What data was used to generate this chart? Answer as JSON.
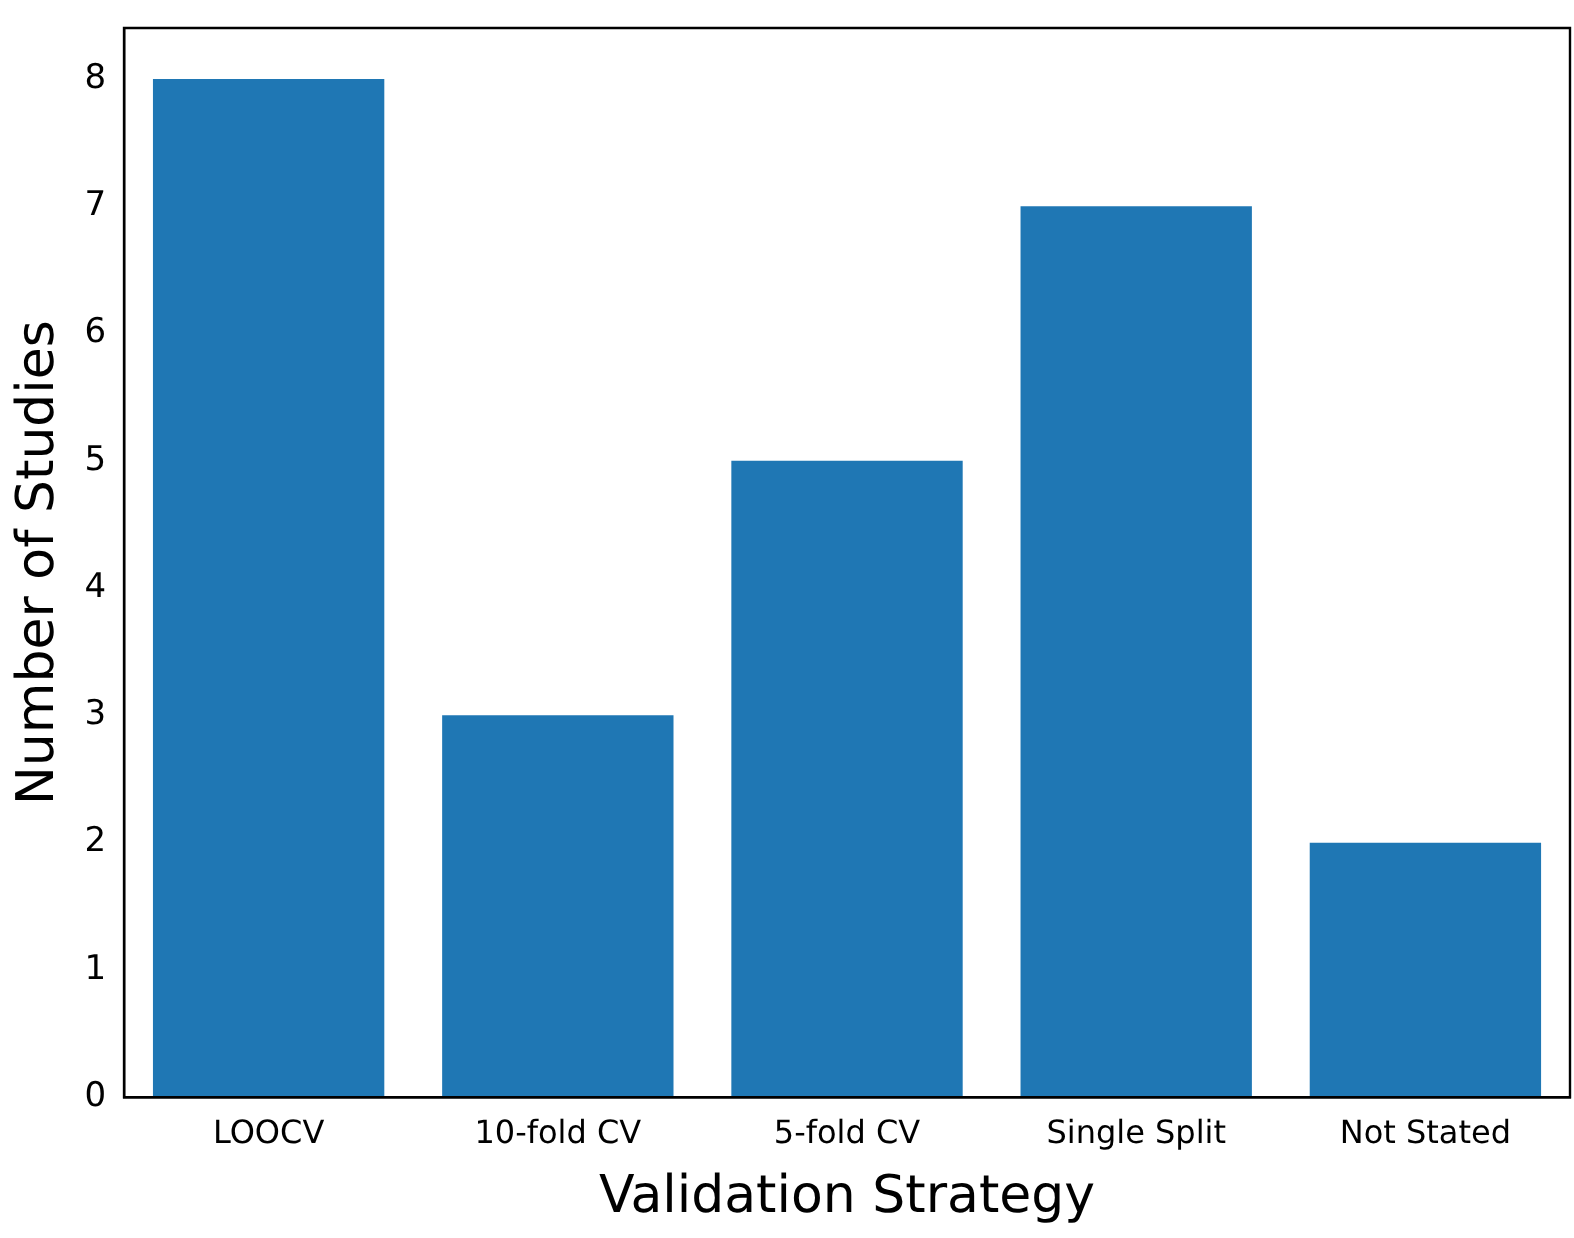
{
  "chart_data": {
    "type": "bar",
    "xlabel": "Validation Strategy",
    "ylabel": "Number of Studies",
    "categories": [
      "LOOCV",
      "10-fold CV",
      "5-fold CV",
      "Single Split",
      "Not Stated"
    ],
    "values": [
      8,
      3,
      5,
      7,
      2
    ],
    "color": "#1f77b4",
    "ylim": [
      0,
      8.4
    ],
    "yticks": [
      0,
      1,
      2,
      3,
      4,
      5,
      6,
      7,
      8
    ],
    "grid": false,
    "legend": false
  }
}
